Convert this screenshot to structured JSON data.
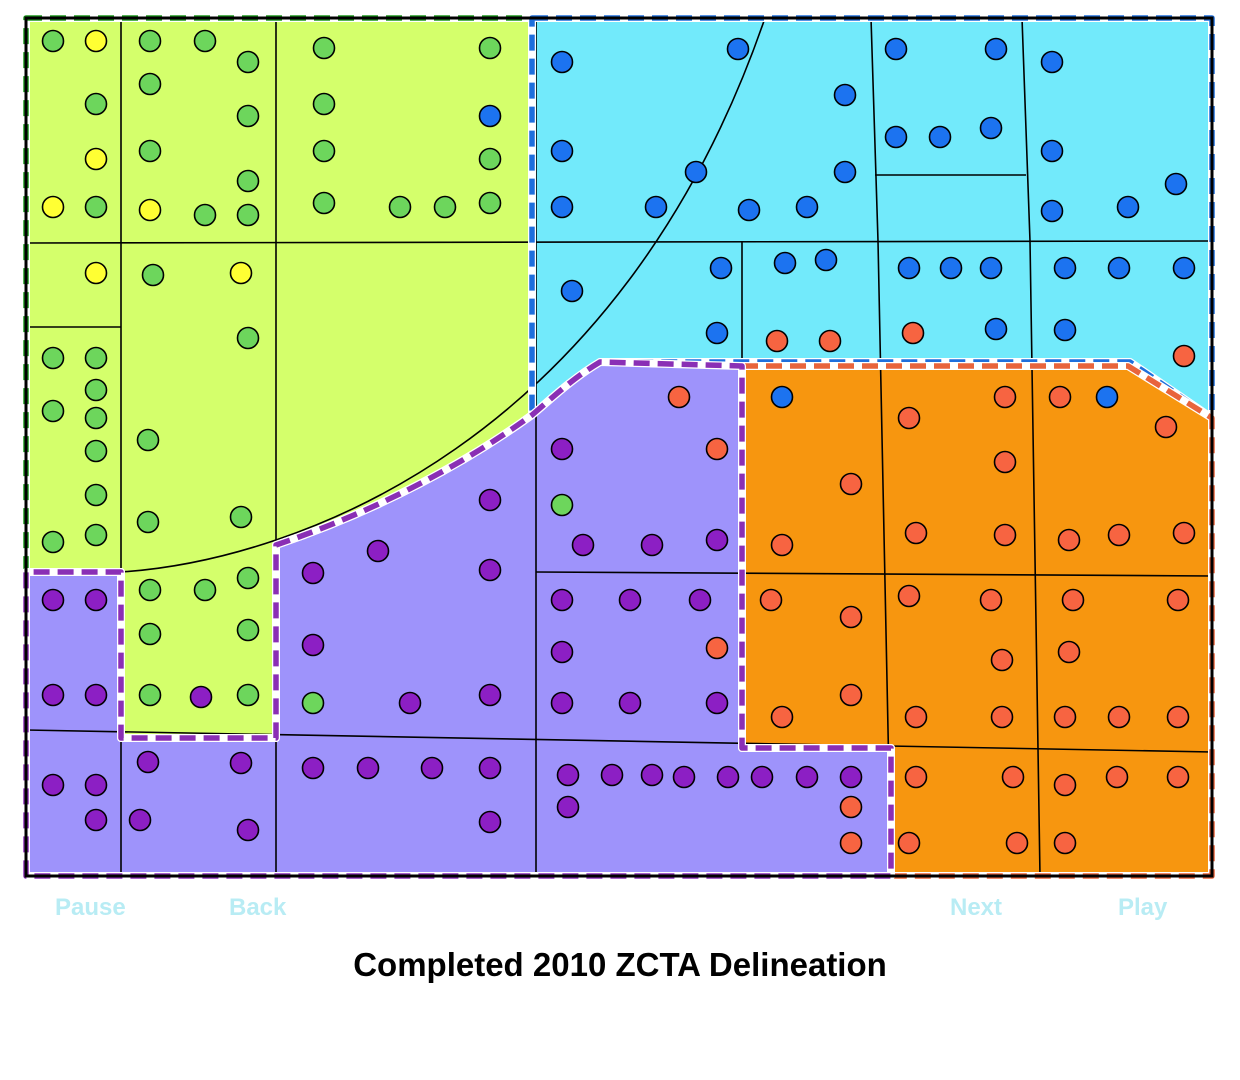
{
  "controls": {
    "pause": "Pause",
    "back": "Back",
    "next": "Next",
    "play": "Play",
    "color": "#b8ecf4"
  },
  "caption": "Completed  2010 ZCTA Delineation",
  "zcta_colors": {
    "green": "#d4ff6b",
    "blue": "#72eafb",
    "purple": "#9e93fb",
    "orange": "#f7960f"
  },
  "outline_colors": {
    "green": "#1e9a1e",
    "blue": "#1f6fdc",
    "purple": "#8a2fb5",
    "orange": "#e8643c"
  },
  "dot_colors": {
    "yellow": "#ffff33",
    "green": "#6dd65c",
    "blue": "#1c73f0",
    "purple": "#8c1fc4",
    "orange": "#f76441"
  },
  "dot_counts": {
    "yellow": 7,
    "green": 46,
    "blue": 42,
    "purple": 50,
    "orange": 57
  }
}
